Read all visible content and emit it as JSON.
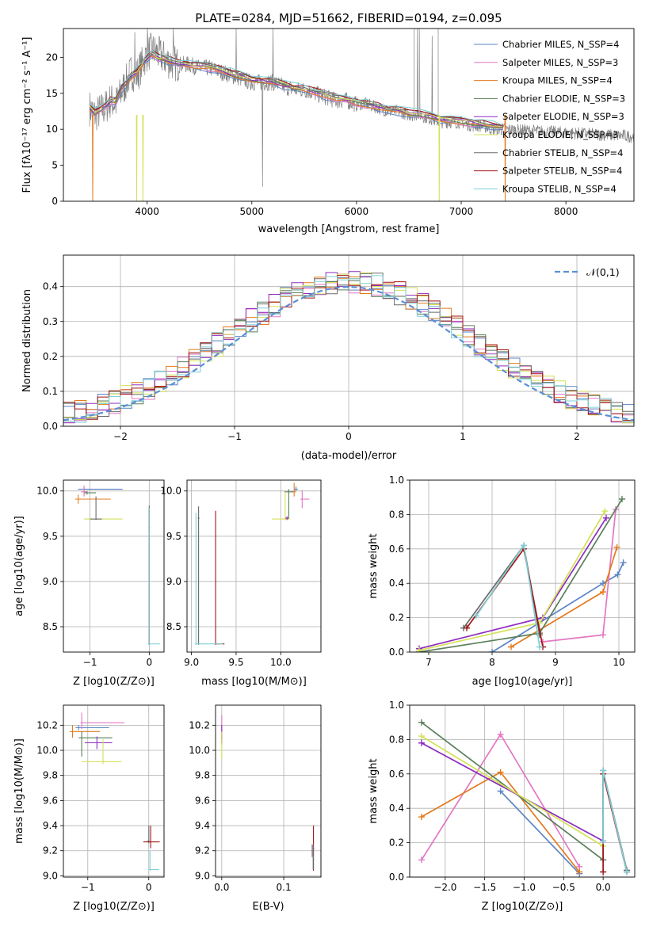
{
  "figure": {
    "title": "PLATE=0284, MJD=51662, FIBERID=0194, z=0.095"
  },
  "chart_data": [
    {
      "id": "spectrum",
      "type": "line",
      "title": "PLATE=0284, MJD=51662, FIBERID=0194, z=0.095",
      "xlabel": "wavelength [Angstrom, rest frame]",
      "ylabel": "Flux [fλ10⁻¹⁷ erg cm⁻² s⁻¹ A⁻¹]",
      "xlim": [
        3200,
        8650
      ],
      "ylim": [
        0,
        24
      ],
      "xticks": [
        4000,
        5000,
        6000,
        7000,
        8000
      ],
      "yticks": [
        0,
        5,
        10,
        15,
        20
      ],
      "grid": false,
      "legend_position": "top-right",
      "data_series": {
        "name": "",
        "color": "#808080",
        "x": [
          3450,
          3500,
          3550,
          3600,
          3650,
          3700,
          3750,
          3800,
          3850,
          3900,
          3950,
          4000,
          4050,
          4100,
          4150,
          4200,
          4300,
          4400,
          4500,
          4600,
          4700,
          4800,
          4900,
          5000,
          5100,
          5200,
          5300,
          5400,
          5500,
          5600,
          5700,
          5800,
          5900,
          6000,
          6100,
          6200,
          6300,
          6400,
          6500,
          6600,
          6700,
          6800,
          6900,
          7000,
          7100,
          7200,
          7300,
          7400
        ],
        "y": [
          13.0,
          12.0,
          12.5,
          13.0,
          14.0,
          13.5,
          15.0,
          16.5,
          18.0,
          17.5,
          19.0,
          20.5,
          21.0,
          20.5,
          20.0,
          19.5,
          19.0,
          19.0,
          18.5,
          18.5,
          18.0,
          17.5,
          17.0,
          16.5,
          16.5,
          16.5,
          16.0,
          15.5,
          15.5,
          15.0,
          14.5,
          14.0,
          14.0,
          13.5,
          13.5,
          13.0,
          12.5,
          12.5,
          12.0,
          12.0,
          11.5,
          11.0,
          11.0,
          11.0,
          10.5,
          10.5,
          10.0,
          10.0
        ]
      },
      "series": [
        {
          "name": "Chabrier MILES, N_SSP=4",
          "color": "#5b84c4"
        },
        {
          "name": "Salpeter MILES, N_SSP=3",
          "color": "#e377c2"
        },
        {
          "name": "Kroupa MILES, N_SSP=4",
          "color": "#e37a1c"
        },
        {
          "name": "Chabrier ELODIE, N_SSP=3",
          "color": "#5a7f5a"
        },
        {
          "name": "Salpeter ELODIE, N_SSP=3",
          "color": "#8e2cbf"
        },
        {
          "name": "Kroupa ELODIE, N_SSP=3",
          "color": "#d4e157"
        },
        {
          "name": "Chabrier STELIB, N_SSP=4",
          "color": "#6a6a6a"
        },
        {
          "name": "Salpeter STELIB, N_SSP=4",
          "color": "#a01414"
        },
        {
          "name": "Kroupa STELIB, N_SSP=4",
          "color": "#7ecfd6"
        }
      ],
      "model_x": [
        3450,
        3500,
        3550,
        3600,
        3650,
        3700,
        3750,
        3800,
        3850,
        3900,
        3950,
        4000,
        4050,
        4100,
        4150,
        4200,
        4300,
        4400,
        4500,
        4600,
        4700,
        4800,
        4900,
        5000,
        5100,
        5200,
        5300,
        5400,
        5500,
        5600,
        5700,
        5800,
        5900,
        6000,
        6100,
        6200,
        6300,
        6400,
        6500,
        6600,
        6700,
        6800,
        6900,
        7000,
        7100,
        7200,
        7300,
        7400
      ],
      "model_y": [
        13.0,
        12.3,
        12.8,
        13.3,
        14.0,
        14.0,
        15.5,
        16.5,
        17.5,
        18.0,
        19.0,
        20.0,
        20.5,
        20.0,
        19.8,
        19.6,
        19.2,
        19.0,
        18.8,
        18.6,
        18.2,
        17.8,
        17.4,
        17.0,
        16.8,
        16.6,
        16.2,
        15.8,
        15.5,
        15.2,
        14.8,
        14.4,
        14.2,
        13.8,
        13.5,
        13.2,
        12.8,
        12.6,
        12.3,
        12.1,
        11.8,
        11.5,
        11.3,
        11.1,
        10.9,
        10.7,
        10.5,
        10.3
      ]
    },
    {
      "id": "residual-hist",
      "type": "line",
      "xlabel": "(data-model)/error",
      "ylabel": "Normed distribution",
      "xlim": [
        -2.5,
        2.5
      ],
      "ylim": [
        0,
        0.49
      ],
      "xticks": [
        -2,
        -1,
        0,
        1,
        2
      ],
      "yticks": [
        0.0,
        0.1,
        0.2,
        0.3,
        0.4
      ],
      "grid": true,
      "legend_position": "top-right",
      "reference": {
        "name": "𝒩(0,1)",
        "color": "#5b8fd6",
        "style": "dashed"
      },
      "bin_width": 0.1,
      "envelope_x": [
        -2.5,
        -2.0,
        -1.5,
        -1.0,
        -0.5,
        0.0,
        0.5,
        1.0,
        1.5,
        2.0,
        2.5
      ],
      "envelope_y": [
        0.03,
        0.08,
        0.16,
        0.28,
        0.37,
        0.4,
        0.36,
        0.26,
        0.14,
        0.07,
        0.03
      ]
    },
    {
      "id": "z-age",
      "type": "scatter",
      "xlabel": "Z [log10(Z/Z⊙)]",
      "ylabel": "age  [log10(age/yr)]",
      "xlim": [
        -1.45,
        0.25
      ],
      "ylim": [
        8.22,
        10.12
      ],
      "xticks": [
        -1,
        0
      ],
      "yticks": [
        8.5,
        9.0,
        9.5,
        10.0
      ],
      "grid": true
    },
    {
      "id": "mass-age",
      "type": "scatter",
      "xlabel": "mass [log10(M/M⊙)]",
      "ylabel": "",
      "xlim": [
        8.95,
        10.45
      ],
      "ylim": [
        8.22,
        10.12
      ],
      "xticks": [
        9.0,
        9.5,
        10.0
      ],
      "yticks": [
        8.5,
        9.0,
        9.5,
        10.0
      ],
      "grid": true
    },
    {
      "id": "age-massweight",
      "type": "line",
      "xlabel": "age  [log10(age/yr)]",
      "ylabel": "mass weight",
      "xlim": [
        6.7,
        10.25
      ],
      "ylim": [
        0,
        1.0
      ],
      "xticks": [
        7,
        8,
        9,
        10
      ],
      "yticks": [
        0.0,
        0.2,
        0.4,
        0.6,
        0.8,
        1.0
      ],
      "grid": true
    },
    {
      "id": "z-mass",
      "type": "scatter",
      "xlabel": "Z [log10(Z/Z⊙)]",
      "ylabel": "mass [log10(M/M⊙)]",
      "xlim": [
        -1.4,
        0.25
      ],
      "ylim": [
        8.99,
        10.36
      ],
      "xticks": [
        -1,
        0
      ],
      "yticks": [
        9.0,
        9.2,
        9.4,
        9.6,
        9.8,
        10.0,
        10.2
      ],
      "grid": true
    },
    {
      "id": "ebv-mass",
      "type": "scatter",
      "xlabel": "E(B-V)",
      "ylabel": "",
      "xlim": [
        -0.01,
        0.16
      ],
      "ylim": [
        8.99,
        10.36
      ],
      "xticks": [
        0.0,
        0.1
      ],
      "yticks": [
        9.0,
        9.2,
        9.4,
        9.6,
        9.8,
        10.0,
        10.2
      ],
      "grid": true
    },
    {
      "id": "z-massweight",
      "type": "line",
      "xlabel": "Z [log10(Z/Z⊙)]",
      "ylabel": "mass weight",
      "xlim": [
        -2.45,
        0.4
      ],
      "ylim": [
        0,
        1.0
      ],
      "xticks": [
        -2.0,
        -1.5,
        -1.0,
        -0.5,
        0.0
      ],
      "yticks": [
        0.0,
        0.2,
        0.4,
        0.6,
        0.8,
        1.0
      ],
      "grid": true
    }
  ]
}
